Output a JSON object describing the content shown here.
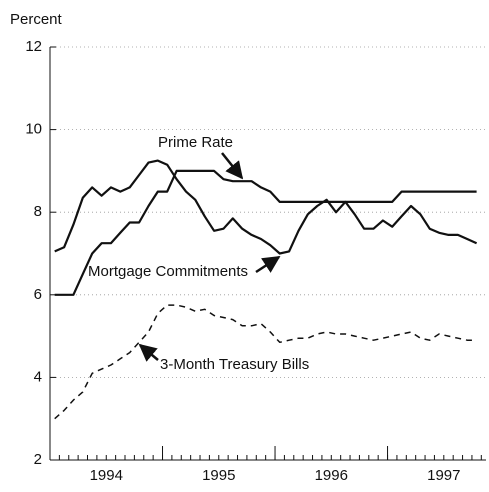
{
  "chart_data": {
    "type": "line",
    "y_label": "Percent",
    "xlim": [
      0,
      46.5
    ],
    "xticks": [
      {
        "value": 6,
        "label": "1994"
      },
      {
        "value": 18,
        "label": "1995"
      },
      {
        "value": 30,
        "label": "1996"
      },
      {
        "value": 42,
        "label": "1997"
      }
    ],
    "xmajor": [
      12,
      24,
      36
    ],
    "ylim": [
      2,
      12
    ],
    "yticks": [
      2,
      4,
      6,
      8,
      10,
      12
    ],
    "grid": true,
    "x": [
      0.5,
      1.5,
      2.5,
      3.5,
      4.5,
      5.5,
      6.5,
      7.5,
      8.5,
      9.5,
      10.5,
      11.5,
      12.5,
      13.5,
      14.5,
      15.5,
      16.5,
      17.5,
      18.5,
      19.5,
      20.5,
      21.5,
      22.5,
      23.5,
      24.5,
      25.5,
      26.5,
      27.5,
      28.5,
      29.5,
      30.5,
      31.5,
      32.5,
      33.5,
      34.5,
      35.5,
      36.5,
      37.5,
      38.5,
      39.5,
      40.5,
      41.5,
      42.5,
      43.5,
      44.5,
      45.5
    ],
    "series": [
      {
        "name": "Prime Rate",
        "color": "#111111",
        "dashed": false,
        "values": [
          6.0,
          6.0,
          6.0,
          6.5,
          7.0,
          7.25,
          7.25,
          7.5,
          7.75,
          7.75,
          8.15,
          8.5,
          8.5,
          9.0,
          9.0,
          9.0,
          9.0,
          9.0,
          8.8,
          8.75,
          8.75,
          8.75,
          8.6,
          8.5,
          8.25,
          8.25,
          8.25,
          8.25,
          8.25,
          8.25,
          8.25,
          8.25,
          8.25,
          8.25,
          8.25,
          8.25,
          8.25,
          8.5,
          8.5,
          8.5,
          8.5,
          8.5,
          8.5,
          8.5,
          8.5,
          8.5
        ]
      },
      {
        "name": "Mortgage Commitments",
        "color": "#111111",
        "dashed": false,
        "values": [
          7.05,
          7.15,
          7.7,
          8.35,
          8.6,
          8.4,
          8.6,
          8.5,
          8.6,
          8.9,
          9.2,
          9.25,
          9.15,
          8.8,
          8.5,
          8.3,
          7.9,
          7.55,
          7.6,
          7.85,
          7.6,
          7.45,
          7.35,
          7.2,
          7.0,
          7.05,
          7.55,
          7.95,
          8.15,
          8.3,
          8.0,
          8.25,
          7.95,
          7.6,
          7.6,
          7.8,
          7.65,
          7.9,
          8.15,
          7.95,
          7.6,
          7.5,
          7.45,
          7.45,
          7.35,
          7.25
        ]
      },
      {
        "name": "3-Month Treasury Bills",
        "color": "#111111",
        "dashed": true,
        "values": [
          3.0,
          3.2,
          3.45,
          3.65,
          4.1,
          4.2,
          4.3,
          4.45,
          4.6,
          4.85,
          5.1,
          5.55,
          5.75,
          5.75,
          5.7,
          5.6,
          5.65,
          5.5,
          5.45,
          5.4,
          5.25,
          5.25,
          5.3,
          5.1,
          4.85,
          4.9,
          4.95,
          4.95,
          5.05,
          5.1,
          5.05,
          5.05,
          5.0,
          4.95,
          4.9,
          4.95,
          5.0,
          5.05,
          5.1,
          4.95,
          4.9,
          5.05,
          5.0,
          4.95,
          4.9,
          4.9
        ]
      }
    ]
  }
}
